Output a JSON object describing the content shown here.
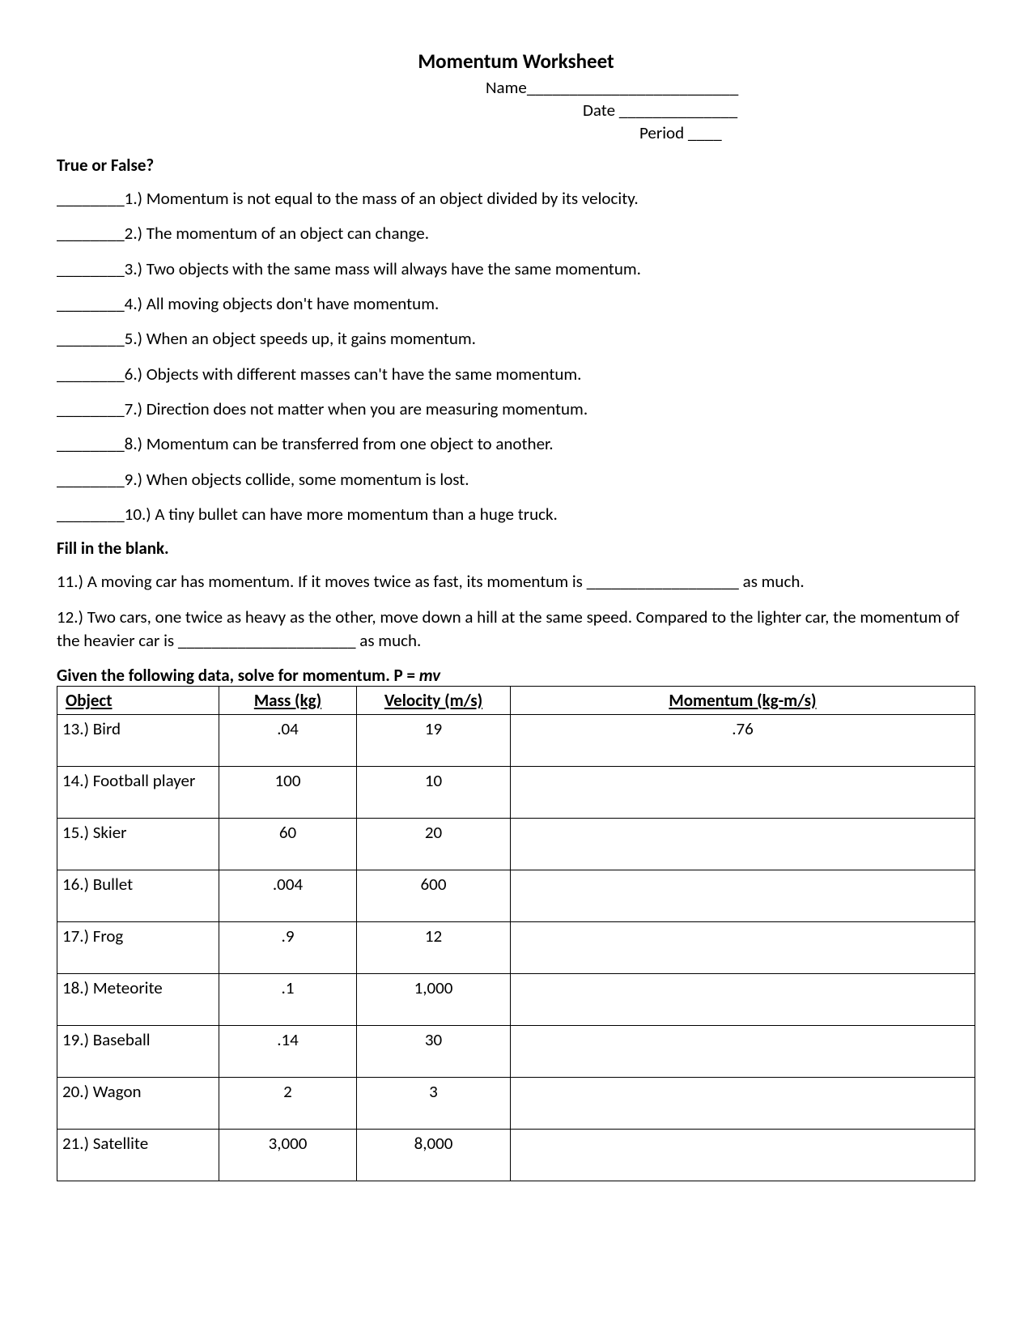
{
  "title": "Momentum Worksheet",
  "header": {
    "name_label": "Name",
    "name_blank": "_________________________",
    "date_label": "Date",
    "date_blank": "______________",
    "period_label": "Period",
    "period_blank": "____"
  },
  "sections": {
    "true_false": {
      "heading": "True or False?",
      "blank": "________",
      "items": [
        "1.)  Momentum is not equal to the mass of an object divided by its velocity.",
        "2.) The momentum of an object can change.",
        "3.)  Two objects with the same mass will always have the same momentum.",
        "4.)  All moving objects don't have momentum.",
        "5.)  When an object speeds up, it gains momentum.",
        "6.)  Objects with different masses can't have the same momentum.",
        "7.)  Direction does not matter when you are measuring momentum.",
        "8.)  Momentum can be transferred from one object to another.",
        "9.)  When objects collide, some momentum is lost.",
        "10.)  A tiny bullet can have more momentum than a huge truck."
      ]
    },
    "fill_blank": {
      "heading": "Fill in the blank.",
      "items": [
        "11.)  A moving car has momentum.  If it moves twice as fast, its momentum is __________________ as much.",
        "12.)  Two cars, one twice as heavy as the other, move down a hill at the same speed.  Compared to the lighter car, the momentum of the heavier car is _____________________ as much."
      ]
    },
    "table": {
      "heading_prefix": "Given the following data, solve for momentum. P = ",
      "heading_formula": "mv",
      "columns": [
        "Object",
        "Mass (kg)",
        "Velocity (m/s)",
        "Momentum (kg-m/s)"
      ],
      "rows": [
        {
          "object": "13.) Bird",
          "mass": ".04",
          "velocity": "19",
          "momentum": ".76"
        },
        {
          "object": "14.) Football player",
          "mass": "100",
          "velocity": "10",
          "momentum": ""
        },
        {
          "object": "15.) Skier",
          "mass": "60",
          "velocity": "20",
          "momentum": ""
        },
        {
          "object": "16.) Bullet",
          "mass": ".004",
          "velocity": "600",
          "momentum": ""
        },
        {
          "object": "17.) Frog",
          "mass": ".9",
          "velocity": "12",
          "momentum": ""
        },
        {
          "object": "18.) Meteorite",
          "mass": ".1",
          "velocity": "1,000",
          "momentum": ""
        },
        {
          "object": "19.) Baseball",
          "mass": ".14",
          "velocity": "30",
          "momentum": ""
        },
        {
          "object": "20.) Wagon",
          "mass": "2",
          "velocity": "3",
          "momentum": ""
        },
        {
          "object": "21.) Satellite",
          "mass": "3,000",
          "velocity": "8,000",
          "momentum": ""
        }
      ]
    }
  }
}
